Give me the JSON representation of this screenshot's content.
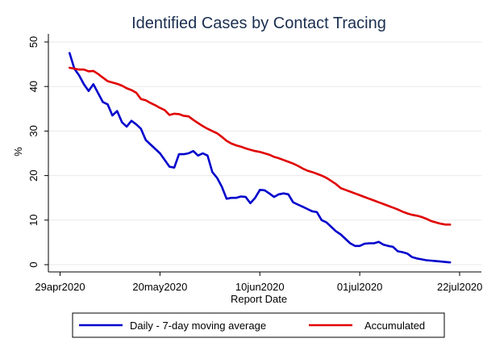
{
  "chart_data": {
    "type": "line",
    "title": "Identified Cases by Contact Tracing",
    "xlabel": "Report Date",
    "ylabel": "%",
    "x_start": "2020-04-29",
    "xlim": [
      "2020-04-29",
      "2020-07-22"
    ],
    "x_ticks": [
      {
        "date": "2020-04-29",
        "label": "29apr2020"
      },
      {
        "date": "2020-05-20",
        "label": "20may2020"
      },
      {
        "date": "2020-06-10",
        "label": "10jun2020"
      },
      {
        "date": "2020-07-01",
        "label": "01jul2020"
      },
      {
        "date": "2020-07-22",
        "label": "22jul2020"
      }
    ],
    "ylim": [
      0,
      50
    ],
    "y_ticks": [
      0,
      10,
      20,
      30,
      40,
      50
    ],
    "grid": "horizontal",
    "legend_position": "bottom",
    "series": [
      {
        "name": "Daily - 7-day moving average",
        "color": "#0000cc",
        "points": [
          [
            "2020-05-01",
            47.5
          ],
          [
            "2020-05-02",
            44
          ],
          [
            "2020-05-03",
            42.5
          ],
          [
            "2020-05-04",
            40.5
          ],
          [
            "2020-05-05",
            39
          ],
          [
            "2020-05-06",
            40.5
          ],
          [
            "2020-05-07",
            38.5
          ],
          [
            "2020-05-08",
            36.5
          ],
          [
            "2020-05-09",
            36
          ],
          [
            "2020-05-10",
            33.5
          ],
          [
            "2020-05-11",
            34.5
          ],
          [
            "2020-05-12",
            32
          ],
          [
            "2020-05-13",
            31
          ],
          [
            "2020-05-14",
            32.3
          ],
          [
            "2020-05-15",
            31.5
          ],
          [
            "2020-05-16",
            30.5
          ],
          [
            "2020-05-17",
            28
          ],
          [
            "2020-05-18",
            27
          ],
          [
            "2020-05-19",
            26
          ],
          [
            "2020-05-20",
            25
          ],
          [
            "2020-05-21",
            23.5
          ],
          [
            "2020-05-22",
            22
          ],
          [
            "2020-05-23",
            21.8
          ],
          [
            "2020-05-24",
            24.8
          ],
          [
            "2020-05-25",
            24.8
          ],
          [
            "2020-05-26",
            25
          ],
          [
            "2020-05-27",
            25.5
          ],
          [
            "2020-05-28",
            24.5
          ],
          [
            "2020-05-29",
            25
          ],
          [
            "2020-05-30",
            24.5
          ],
          [
            "2020-05-31",
            20.8
          ],
          [
            "2020-06-01",
            19.5
          ],
          [
            "2020-06-02",
            17.5
          ],
          [
            "2020-06-03",
            14.8
          ],
          [
            "2020-06-04",
            15
          ],
          [
            "2020-06-05",
            15
          ],
          [
            "2020-06-06",
            15.3
          ],
          [
            "2020-06-07",
            15.2
          ],
          [
            "2020-06-08",
            13.8
          ],
          [
            "2020-06-09",
            15
          ],
          [
            "2020-06-10",
            16.8
          ],
          [
            "2020-06-11",
            16.7
          ],
          [
            "2020-06-12",
            16
          ],
          [
            "2020-06-13",
            15.2
          ],
          [
            "2020-06-14",
            15.8
          ],
          [
            "2020-06-15",
            16
          ],
          [
            "2020-06-16",
            15.8
          ],
          [
            "2020-06-17",
            14
          ],
          [
            "2020-06-18",
            13.5
          ],
          [
            "2020-06-19",
            13
          ],
          [
            "2020-06-20",
            12.5
          ],
          [
            "2020-06-21",
            12
          ],
          [
            "2020-06-22",
            11.8
          ],
          [
            "2020-06-23",
            10
          ],
          [
            "2020-06-24",
            9.5
          ],
          [
            "2020-06-25",
            8.5
          ],
          [
            "2020-06-26",
            7.5
          ],
          [
            "2020-06-27",
            6.8
          ],
          [
            "2020-06-28",
            5.8
          ],
          [
            "2020-06-29",
            4.8
          ],
          [
            "2020-06-30",
            4.2
          ],
          [
            "2020-07-01",
            4.2
          ],
          [
            "2020-07-02",
            4.7
          ],
          [
            "2020-07-03",
            4.8
          ],
          [
            "2020-07-04",
            4.8
          ],
          [
            "2020-07-05",
            5.1
          ],
          [
            "2020-07-06",
            4.5
          ],
          [
            "2020-07-07",
            4.2
          ],
          [
            "2020-07-08",
            4
          ],
          [
            "2020-07-09",
            3
          ],
          [
            "2020-07-10",
            2.8
          ],
          [
            "2020-07-11",
            2.5
          ],
          [
            "2020-07-12",
            1.7
          ],
          [
            "2020-07-13",
            1.4
          ],
          [
            "2020-07-14",
            1.2
          ],
          [
            "2020-07-15",
            1
          ],
          [
            "2020-07-16",
            0.9
          ],
          [
            "2020-07-17",
            0.8
          ],
          [
            "2020-07-18",
            0.7
          ],
          [
            "2020-07-19",
            0.6
          ],
          [
            "2020-07-20",
            0.5
          ]
        ]
      },
      {
        "name": "Accumulated",
        "color": "#e00000",
        "points": [
          [
            "2020-05-01",
            44.2
          ],
          [
            "2020-05-02",
            44
          ],
          [
            "2020-05-03",
            43.8
          ],
          [
            "2020-05-04",
            43.8
          ],
          [
            "2020-05-05",
            43.4
          ],
          [
            "2020-05-06",
            43.5
          ],
          [
            "2020-05-07",
            42.8
          ],
          [
            "2020-05-08",
            42
          ],
          [
            "2020-05-09",
            41.2
          ],
          [
            "2020-05-10",
            40.9
          ],
          [
            "2020-05-11",
            40.6
          ],
          [
            "2020-05-12",
            40.2
          ],
          [
            "2020-05-13",
            39.6
          ],
          [
            "2020-05-14",
            39.2
          ],
          [
            "2020-05-15",
            38.6
          ],
          [
            "2020-05-16",
            37.2
          ],
          [
            "2020-05-17",
            36.9
          ],
          [
            "2020-05-18",
            36.3
          ],
          [
            "2020-05-19",
            35.8
          ],
          [
            "2020-05-20",
            35.2
          ],
          [
            "2020-05-21",
            34.7
          ],
          [
            "2020-05-22",
            33.6
          ],
          [
            "2020-05-23",
            33.9
          ],
          [
            "2020-05-24",
            33.8
          ],
          [
            "2020-05-25",
            33.4
          ],
          [
            "2020-05-26",
            33.3
          ],
          [
            "2020-05-27",
            32.5
          ],
          [
            "2020-05-28",
            31.8
          ],
          [
            "2020-05-29",
            31.1
          ],
          [
            "2020-05-30",
            30.5
          ],
          [
            "2020-05-31",
            30
          ],
          [
            "2020-06-01",
            29.5
          ],
          [
            "2020-06-02",
            28.7
          ],
          [
            "2020-06-03",
            27.8
          ],
          [
            "2020-06-04",
            27.2
          ],
          [
            "2020-06-05",
            26.8
          ],
          [
            "2020-06-06",
            26.5
          ],
          [
            "2020-06-07",
            26.1
          ],
          [
            "2020-06-08",
            25.8
          ],
          [
            "2020-06-09",
            25.5
          ],
          [
            "2020-06-10",
            25.3
          ],
          [
            "2020-06-11",
            25
          ],
          [
            "2020-06-12",
            24.7
          ],
          [
            "2020-06-13",
            24.2
          ],
          [
            "2020-06-14",
            23.9
          ],
          [
            "2020-06-15",
            23.5
          ],
          [
            "2020-06-16",
            23.1
          ],
          [
            "2020-06-17",
            22.7
          ],
          [
            "2020-06-18",
            22.2
          ],
          [
            "2020-06-19",
            21.6
          ],
          [
            "2020-06-20",
            21.1
          ],
          [
            "2020-06-21",
            20.8
          ],
          [
            "2020-06-22",
            20.4
          ],
          [
            "2020-06-23",
            20
          ],
          [
            "2020-06-24",
            19.5
          ],
          [
            "2020-06-25",
            18.8
          ],
          [
            "2020-06-26",
            18.1
          ],
          [
            "2020-06-27",
            17.2
          ],
          [
            "2020-06-28",
            16.8
          ],
          [
            "2020-06-29",
            16.4
          ],
          [
            "2020-06-30",
            16
          ],
          [
            "2020-07-01",
            15.6
          ],
          [
            "2020-07-02",
            15.2
          ],
          [
            "2020-07-03",
            14.8
          ],
          [
            "2020-07-04",
            14.4
          ],
          [
            "2020-07-05",
            14
          ],
          [
            "2020-07-06",
            13.6
          ],
          [
            "2020-07-07",
            13.2
          ],
          [
            "2020-07-08",
            12.8
          ],
          [
            "2020-07-09",
            12.4
          ],
          [
            "2020-07-10",
            11.9
          ],
          [
            "2020-07-11",
            11.5
          ],
          [
            "2020-07-12",
            11.2
          ],
          [
            "2020-07-13",
            11
          ],
          [
            "2020-07-14",
            10.7
          ],
          [
            "2020-07-15",
            10.3
          ],
          [
            "2020-07-16",
            9.8
          ],
          [
            "2020-07-17",
            9.5
          ],
          [
            "2020-07-18",
            9.2
          ],
          [
            "2020-07-19",
            9
          ],
          [
            "2020-07-20",
            9
          ]
        ]
      }
    ]
  }
}
